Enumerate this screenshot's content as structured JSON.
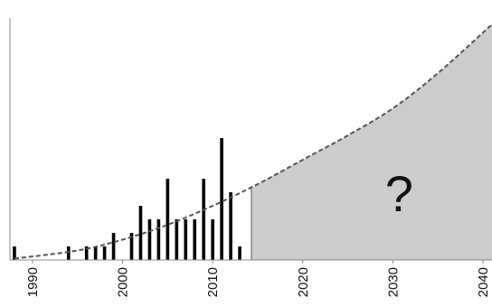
{
  "chart_data": {
    "type": "bar",
    "title": "",
    "xlabel": "",
    "ylabel": "",
    "xlim": [
      1987.5,
      2041
    ],
    "ylim": [
      0,
      9
    ],
    "x_ticks": [
      "1990",
      "2000",
      "2010",
      "2020",
      "2030",
      "2040"
    ],
    "bars": [
      {
        "x": 1988,
        "value": 0.5
      },
      {
        "x": 1994,
        "value": 0.5
      },
      {
        "x": 1996,
        "value": 0.5
      },
      {
        "x": 1997,
        "value": 0.5
      },
      {
        "x": 1998,
        "value": 0.5
      },
      {
        "x": 1999,
        "value": 1
      },
      {
        "x": 2001,
        "value": 1
      },
      {
        "x": 2002,
        "value": 2
      },
      {
        "x": 2003,
        "value": 1.5
      },
      {
        "x": 2004,
        "value": 1.5
      },
      {
        "x": 2005,
        "value": 3
      },
      {
        "x": 2006,
        "value": 1.5
      },
      {
        "x": 2007,
        "value": 1.5
      },
      {
        "x": 2008,
        "value": 1.5
      },
      {
        "x": 2009,
        "value": 3
      },
      {
        "x": 2010,
        "value": 1.5
      },
      {
        "x": 2011,
        "value": 4.5
      },
      {
        "x": 2012,
        "value": 2.5
      },
      {
        "x": 2013,
        "value": 0.5
      }
    ],
    "trend": {
      "style": "dashed",
      "points": [
        {
          "x": 1988,
          "y": 0.05
        },
        {
          "x": 1995,
          "y": 0.35
        },
        {
          "x": 2000,
          "y": 0.75
        },
        {
          "x": 2005,
          "y": 1.3
        },
        {
          "x": 2010,
          "y": 2.0
        },
        {
          "x": 2015,
          "y": 2.8
        },
        {
          "x": 2020,
          "y": 3.7
        },
        {
          "x": 2025,
          "y": 4.6
        },
        {
          "x": 2030,
          "y": 5.6
        },
        {
          "x": 2035,
          "y": 6.9
        },
        {
          "x": 2041,
          "y": 8.7
        }
      ]
    },
    "projection_start": 2014.3,
    "annotation": "?",
    "colors": {
      "bars": "#000000",
      "trend": "#555555",
      "projection_fill": "#cccccc",
      "projection_edge": "#888888",
      "axis": "#888888"
    }
  }
}
